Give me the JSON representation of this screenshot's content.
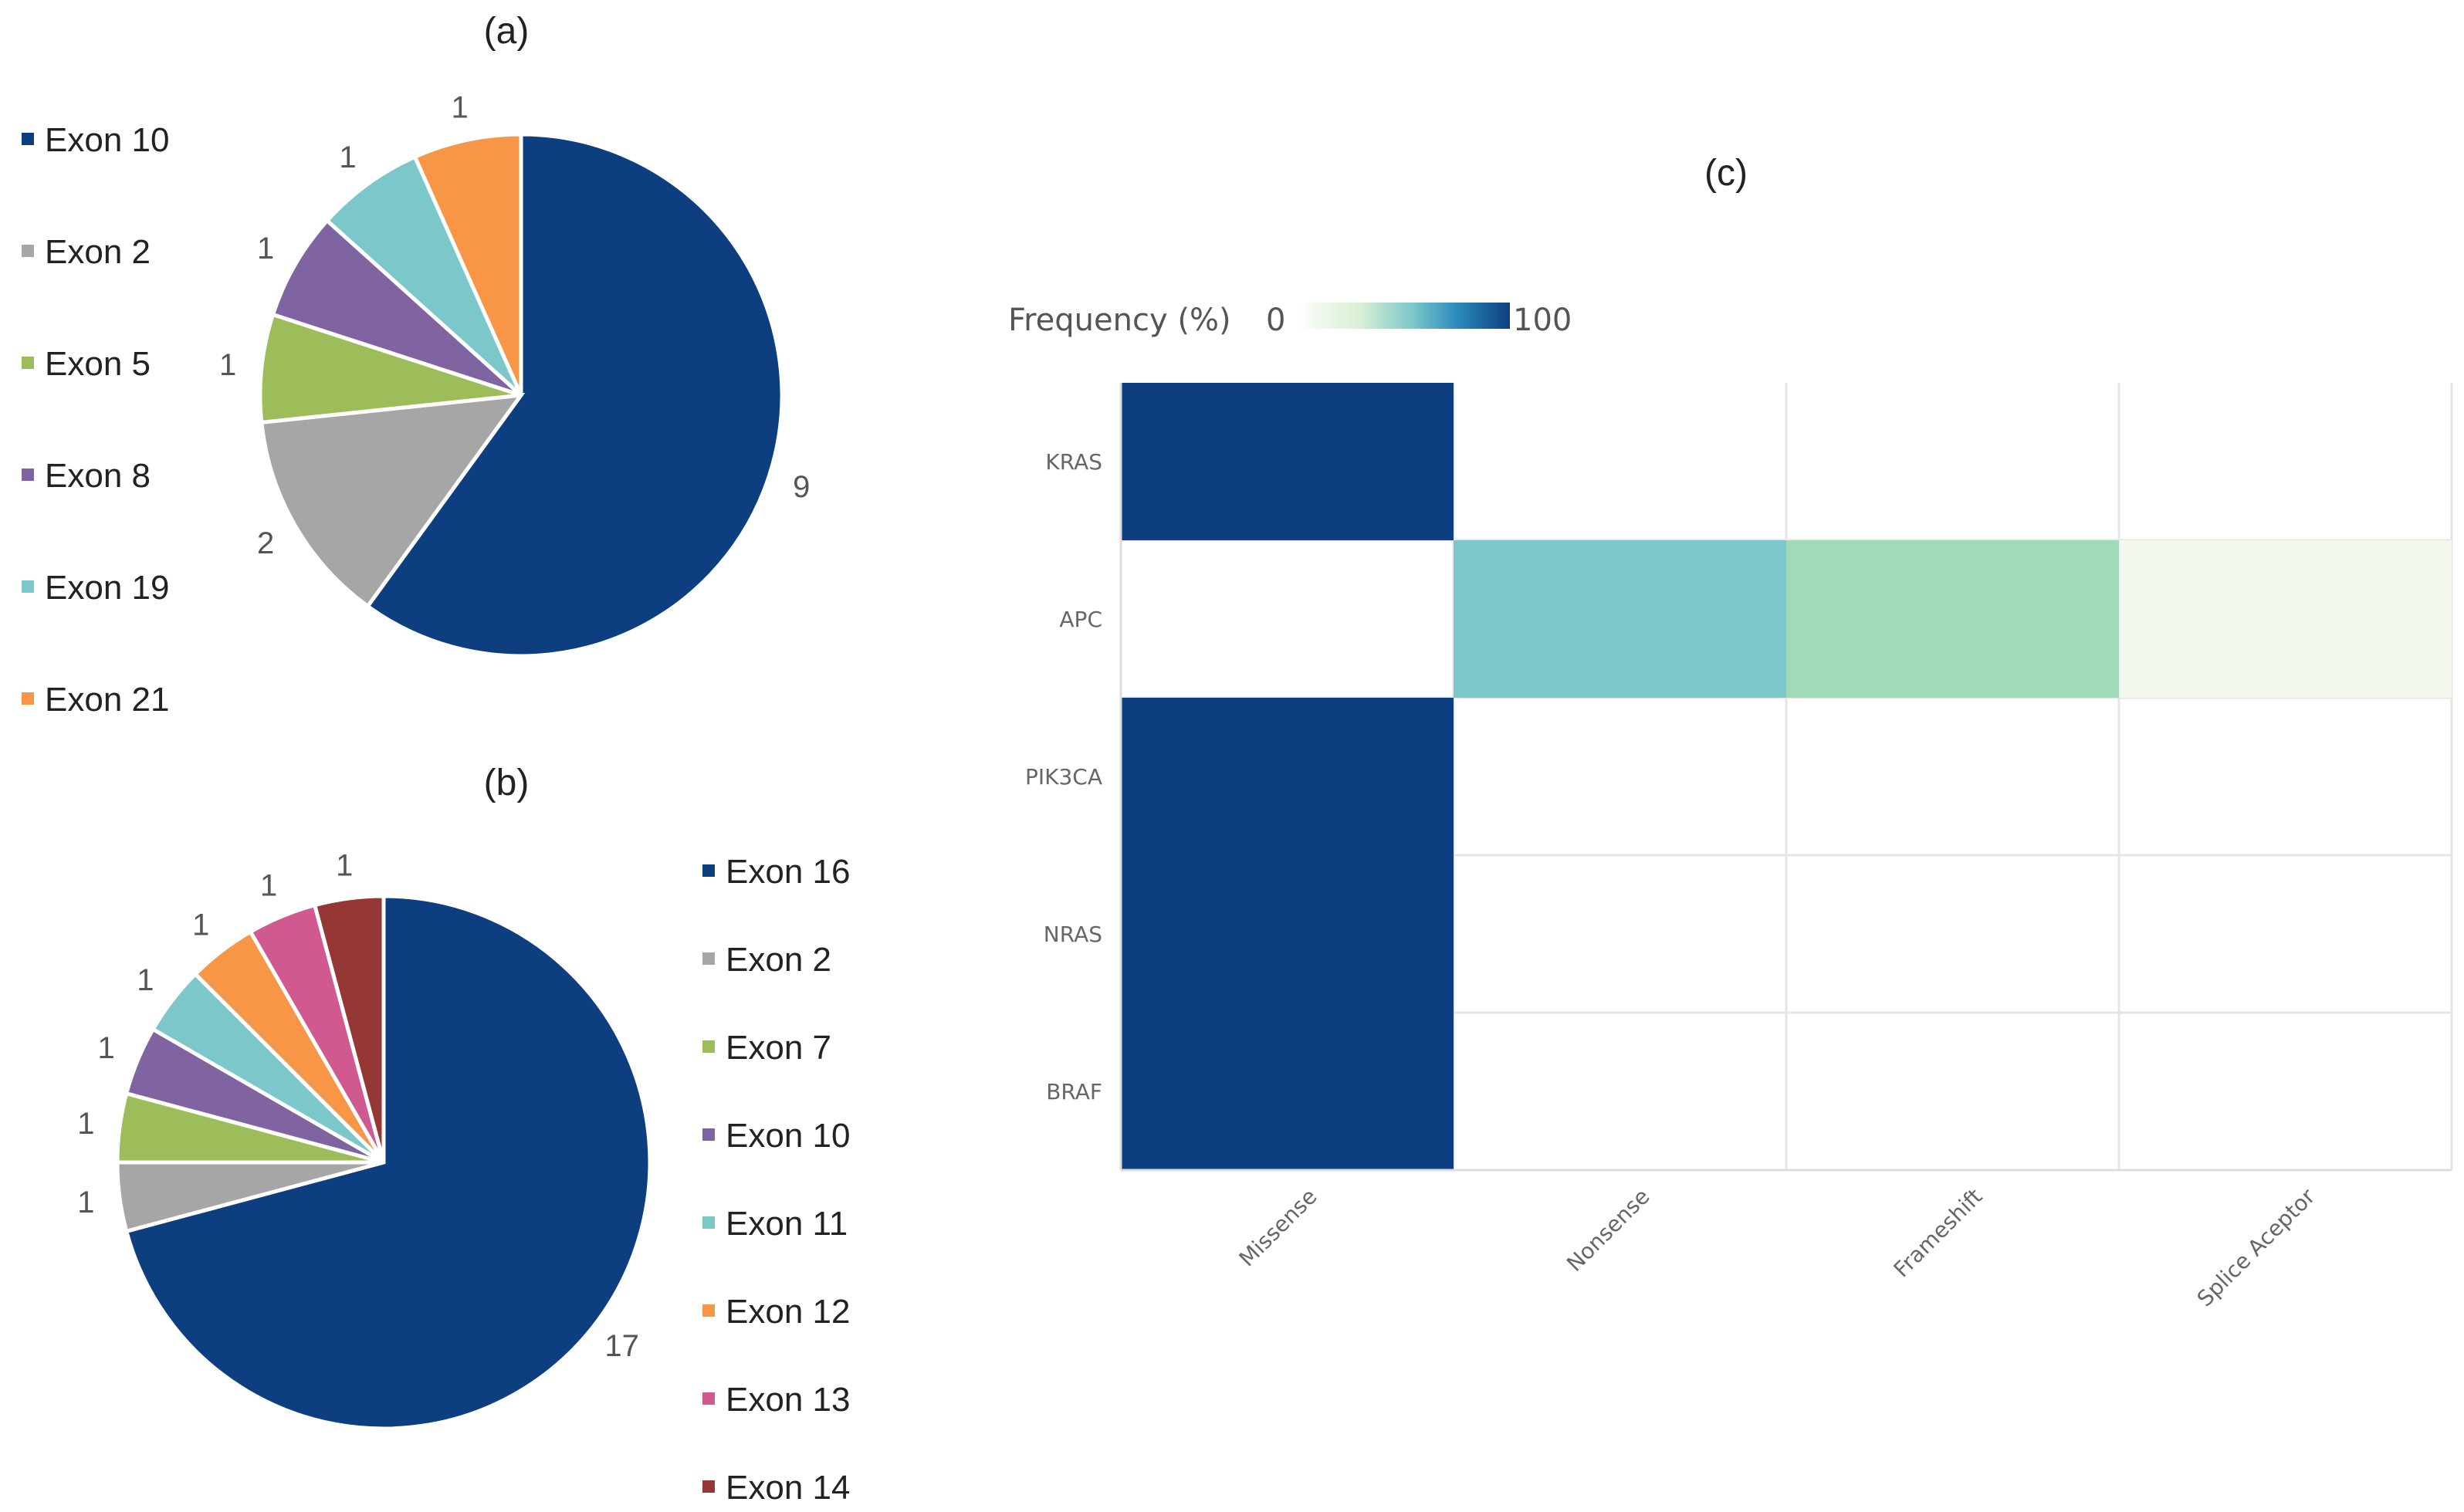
{
  "chart_data": [
    {
      "id": "a",
      "type": "pie",
      "title": "(a)",
      "legend_position": "left",
      "colors": [
        "#0d3f80",
        "#a6a6a6",
        "#9cbd59",
        "#8064a2",
        "#7bc7c9",
        "#f79646"
      ],
      "categories": [
        "Exon 10",
        "Exon 2",
        "Exon 5",
        "Exon 8",
        "Exon 19",
        "Exon 21"
      ],
      "values": [
        9,
        2,
        1,
        1,
        1,
        1
      ]
    },
    {
      "id": "b",
      "type": "pie",
      "title": "(b)",
      "legend_position": "right",
      "colors": [
        "#0d3f80",
        "#a6a6a6",
        "#9cbd59",
        "#8064a2",
        "#7bc7c9",
        "#f79646",
        "#d05a8f",
        "#953735"
      ],
      "categories": [
        "Exon 16",
        "Exon 2",
        "Exon 7",
        "Exon 10",
        "Exon 11",
        " Exon 12",
        "Exon 13",
        "Exon 14"
      ],
      "values": [
        17,
        1,
        1,
        1,
        1,
        1,
        1,
        1
      ]
    },
    {
      "id": "c",
      "type": "heatmap",
      "title": "(c)",
      "colorbar_label": "Frequency (%)",
      "colorbar_min": "0",
      "colorbar_max": "100",
      "colorbar_range": [
        0,
        100
      ],
      "rows": [
        "KRAS",
        "APC",
        "PIK3CA",
        "NRAS",
        "BRAF"
      ],
      "columns": [
        "Missense",
        "Nonsense",
        "Frameshift",
        "Splice Aceptor"
      ],
      "values": [
        [
          100,
          null,
          null,
          null
        ],
        [
          null,
          50,
          35,
          5
        ],
        [
          100,
          null,
          null,
          null
        ],
        [
          100,
          null,
          null,
          null
        ],
        [
          100,
          null,
          null,
          null
        ]
      ]
    }
  ]
}
